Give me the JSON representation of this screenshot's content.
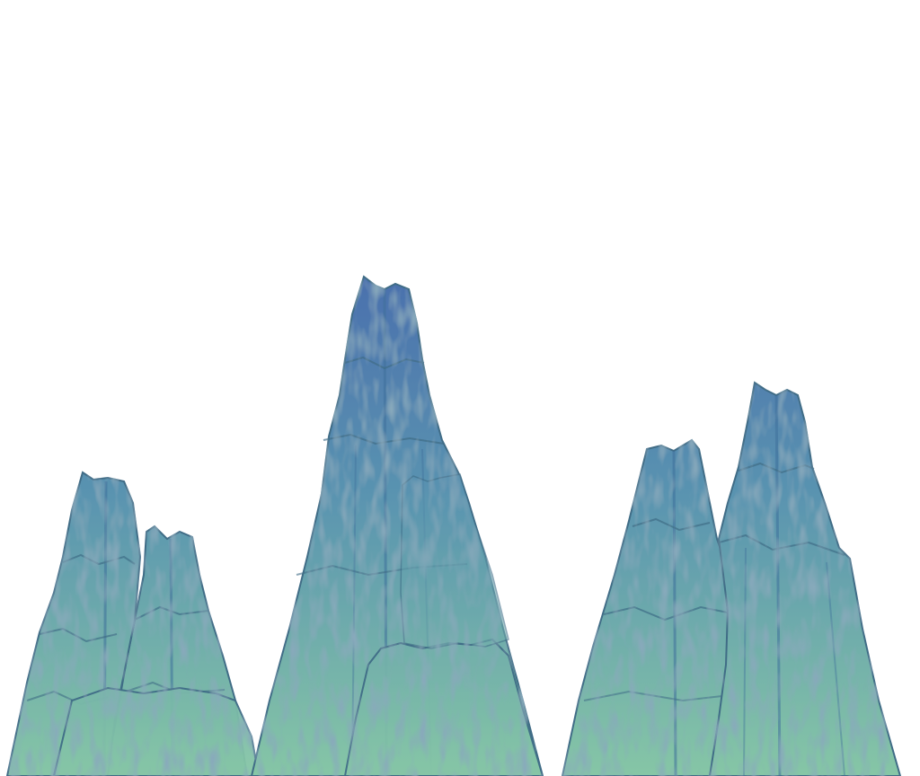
{
  "scene": {
    "background_color": "#ffffff",
    "palette": {
      "peak_top": "#4a6fad",
      "peak_mid": "#5a94b0",
      "peak_base": "#86c6a6",
      "outline": "#3f6c86",
      "ridge": "#3e6f9a",
      "highlight": "#9ad4c0"
    },
    "mountains": [
      {
        "name": "left-tall-peak"
      },
      {
        "name": "left-small-peak"
      },
      {
        "name": "center-main-peak"
      },
      {
        "name": "center-front-peak"
      },
      {
        "name": "right-small-peak"
      },
      {
        "name": "right-tall-peak"
      }
    ]
  }
}
